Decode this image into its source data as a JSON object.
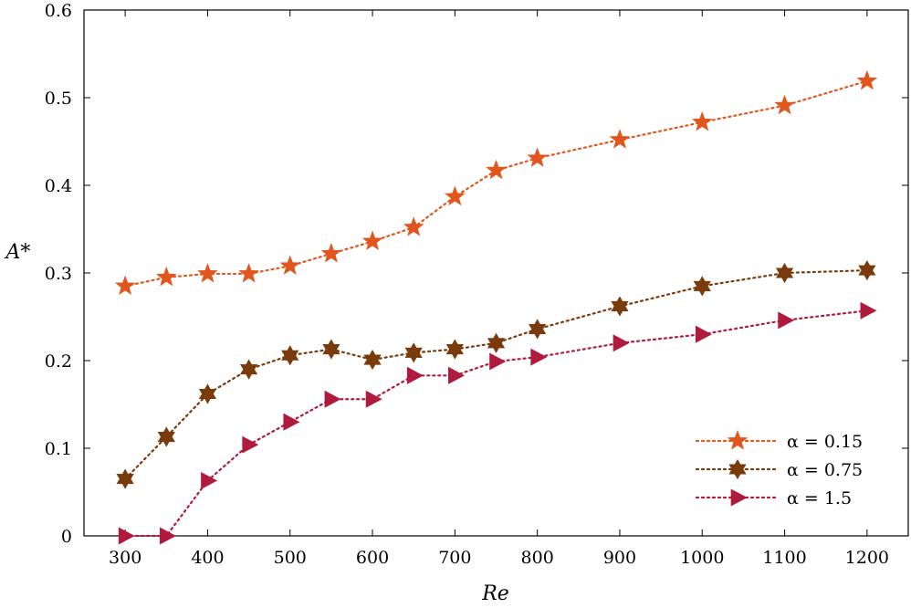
{
  "chart_data": {
    "type": "line",
    "xlabel": "Re",
    "ylabel": "A*",
    "xlim": [
      250,
      1250
    ],
    "ylim": [
      0,
      0.6
    ],
    "x_ticks": [
      300,
      400,
      500,
      600,
      700,
      800,
      900,
      1000,
      1100,
      1200
    ],
    "y_ticks": [
      0,
      0.1,
      0.2,
      0.3,
      0.4,
      0.5,
      0.6
    ],
    "x_tick_labels": [
      "300",
      "400",
      "500",
      "600",
      "700",
      "800",
      "900",
      "1000",
      "1100",
      "1200"
    ],
    "y_tick_labels": [
      "0",
      "0.1",
      "0.2",
      "0.3",
      "0.4",
      "0.5",
      "0.6"
    ],
    "grid": false,
    "legend_position": "bottom-right",
    "x": [
      300,
      350,
      400,
      450,
      500,
      550,
      600,
      650,
      700,
      750,
      800,
      900,
      1000,
      1100,
      1200
    ],
    "series": [
      {
        "name": "α = 0.15",
        "marker": "star5",
        "color": "#E0561E",
        "values": [
          0.285,
          0.295,
          0.299,
          0.299,
          0.308,
          0.322,
          0.336,
          0.352,
          0.387,
          0.417,
          0.431,
          0.452,
          0.472,
          0.491,
          0.519
        ]
      },
      {
        "name": "α = 0.75",
        "marker": "star6",
        "color": "#7A3B0C",
        "values": [
          0.065,
          0.113,
          0.162,
          0.19,
          0.206,
          0.213,
          0.201,
          0.209,
          0.213,
          0.22,
          0.236,
          0.262,
          0.285,
          0.3,
          0.303
        ]
      },
      {
        "name": "α = 1.5",
        "marker": "triangle-right",
        "color": "#B01A3C",
        "values": [
          0,
          0,
          0.063,
          0.104,
          0.13,
          0.156,
          0.156,
          0.183,
          0.183,
          0.199,
          0.204,
          0.22,
          0.23,
          0.246,
          0.257
        ]
      }
    ]
  }
}
